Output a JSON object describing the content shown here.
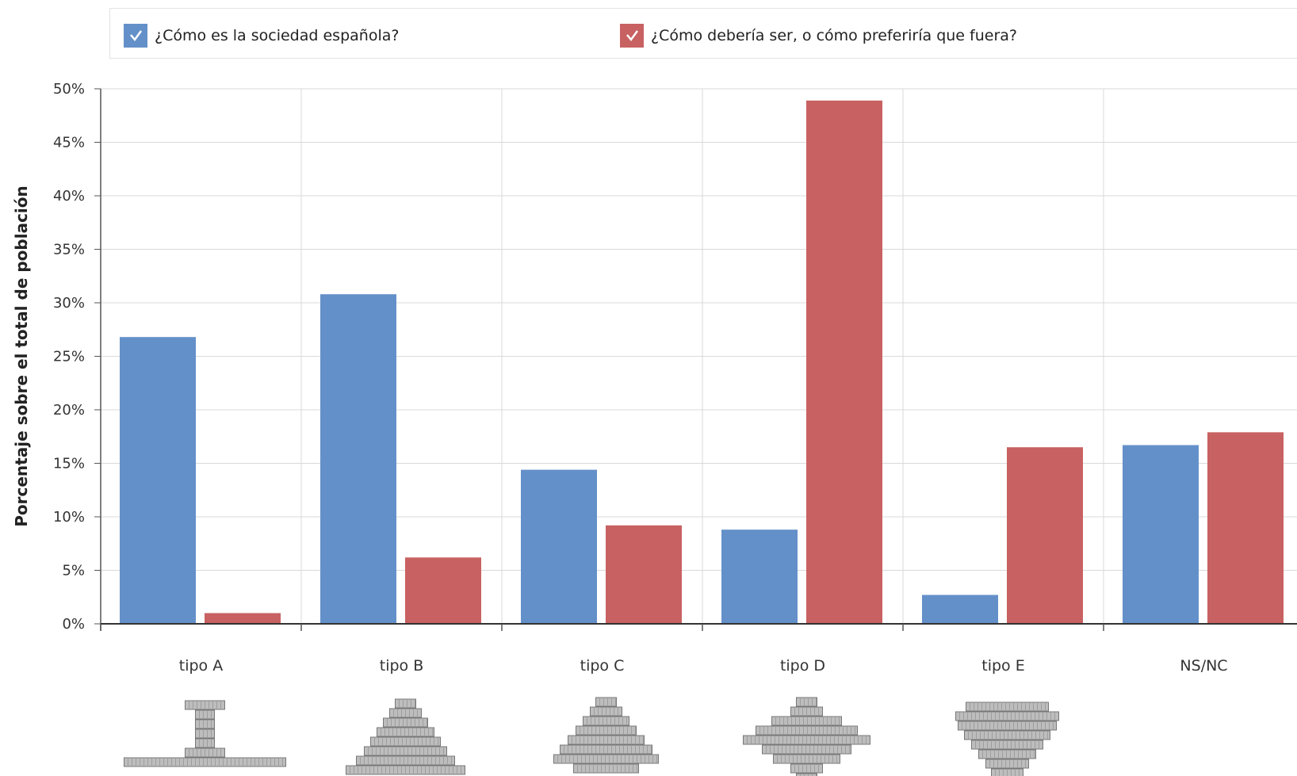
{
  "colors": {
    "series_0": "#6490c9",
    "series_1": "#c86161",
    "grid": "#d9d9d9",
    "axis": "#555555"
  },
  "legend": [
    {
      "label": "¿Cómo es la sociedad española?",
      "checked": true,
      "icon": "check-icon"
    },
    {
      "label": "¿Cómo debería ser, o cómo preferiría que fuera?",
      "checked": true,
      "icon": "check-icon"
    }
  ],
  "chart_data": {
    "type": "bar",
    "title": "",
    "xlabel": "",
    "ylabel": "Porcentaje sobre el total de población",
    "ylim": [
      0,
      50
    ],
    "y_ticks": [
      0,
      5,
      10,
      15,
      20,
      25,
      30,
      35,
      40,
      45,
      50
    ],
    "y_tick_labels": [
      "0%",
      "5%",
      "10%",
      "15%",
      "20%",
      "25%",
      "30%",
      "35%",
      "40%",
      "45%",
      "50%"
    ],
    "grid": true,
    "legend_position": "top",
    "categories": [
      "tipo A",
      "tipo B",
      "tipo C",
      "tipo D",
      "tipo E",
      "NS/NC"
    ],
    "category_icons": [
      "pyramid-type-a-icon",
      "pyramid-type-b-icon",
      "pyramid-type-c-icon",
      "pyramid-type-d-icon",
      "pyramid-type-e-icon",
      ""
    ],
    "series": [
      {
        "name": "¿Cómo es la sociedad española?",
        "values": [
          26.8,
          30.8,
          14.4,
          8.8,
          2.7,
          16.7
        ]
      },
      {
        "name": "¿Cómo debería ser, o cómo preferiría que fuera?",
        "values": [
          1.0,
          6.2,
          9.2,
          48.9,
          16.5,
          17.9
        ]
      }
    ]
  }
}
